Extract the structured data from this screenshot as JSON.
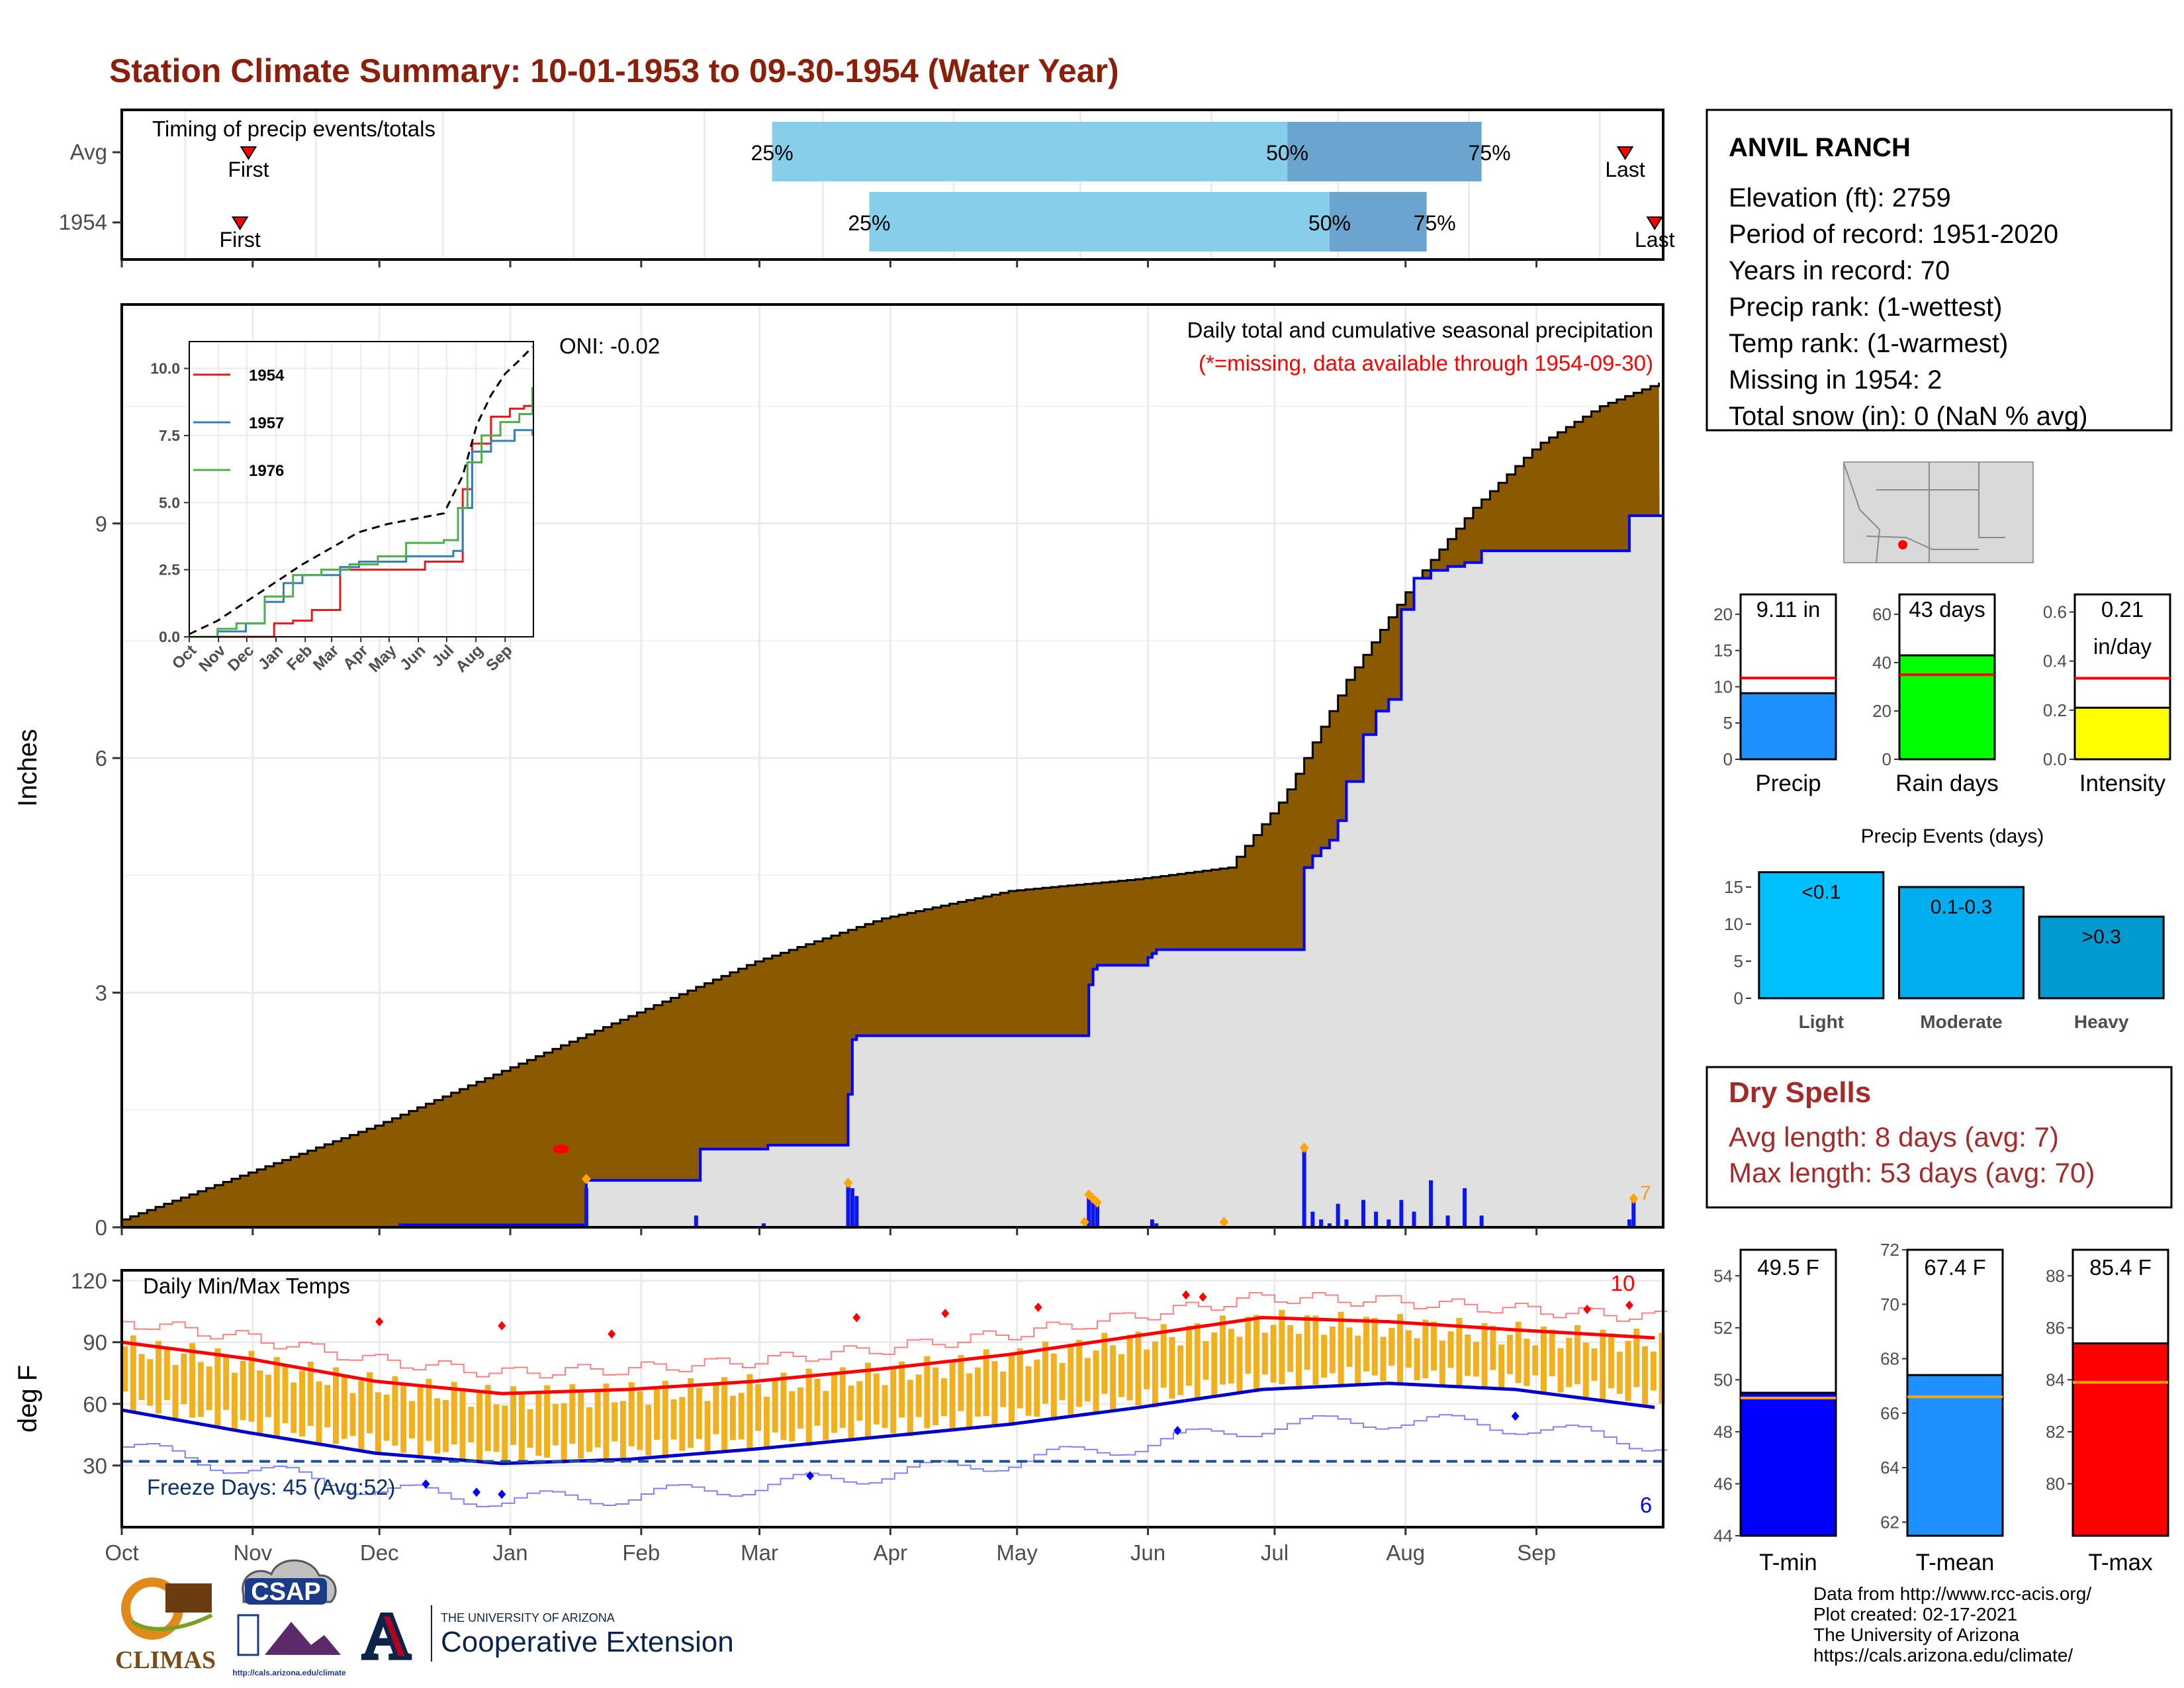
{
  "title": "Station Climate Summary: 10-01-1953 to 09-30-1954 (Water Year)",
  "colors": {
    "title": "#8b1f0a",
    "cum_fill": "#8b5a00",
    "avg_fill": "#e0e0e0",
    "bar_blue": "#0b14f5",
    "temp_bar": "#f0b020",
    "max_line": "#ff0000",
    "min_line": "#0000ff"
  },
  "timing": {
    "label": "Timing of precip events/totals",
    "rows": [
      {
        "label": "Avg",
        "first": "First",
        "last": "Last",
        "first_day": 30,
        "last_day": 356,
        "p25": 154,
        "p50": 276,
        "p75": 322,
        "p25_label": "25%",
        "p50_label": "50%",
        "p75_label": "75%"
      },
      {
        "label": "1954",
        "first": "First",
        "last": "Last",
        "first_day": 28,
        "last_day": 363,
        "p25": 177,
        "p50": 286,
        "p75": 309,
        "p25_label": "25%",
        "p50_label": "50%",
        "p75_label": "75%"
      }
    ]
  },
  "months": [
    "Oct",
    "Nov",
    "Dec",
    "Jan",
    "Feb",
    "Mar",
    "Apr",
    "May",
    "Jun",
    "Jul",
    "Aug",
    "Sep"
  ],
  "month_starts": [
    0,
    31,
    61,
    92,
    123,
    151,
    182,
    212,
    243,
    273,
    304,
    335
  ],
  "chart_data": [
    {
      "type": "area",
      "name": "cumulative-precip",
      "title": "Daily total and cumulative seasonal precipitation",
      "subtitle": "(*=missing, data available through 1954-09-30)",
      "ylabel": "Inches",
      "ylim": [
        0,
        11.8
      ],
      "yticks": [
        "0",
        "3",
        "6",
        "9"
      ],
      "oni": "ONI: -0.02",
      "avg_cum": {
        "x": [
          0,
          10,
          30,
          60,
          90,
          120,
          150,
          180,
          210,
          240,
          262,
          275,
          290,
          305,
          320,
          335,
          350,
          364
        ],
        "y": [
          0.1,
          0.3,
          0.7,
          1.3,
          2.0,
          2.7,
          3.4,
          3.95,
          4.3,
          4.45,
          4.6,
          5.5,
          7.0,
          8.2,
          9.2,
          10.0,
          10.5,
          10.8
        ]
      },
      "obs_cum": {
        "x": [
          0,
          65,
          66,
          109,
          110,
          136,
          137,
          152,
          153,
          171,
          172,
          173,
          174,
          228,
          229,
          230,
          231,
          242,
          243,
          244,
          245,
          279,
          280,
          282,
          284,
          286,
          288,
          290,
          294,
          297,
          300,
          303,
          306,
          310,
          314,
          318,
          322,
          340,
          355,
          357,
          364
        ],
        "y": [
          0,
          0,
          0.03,
          0.03,
          0.6,
          0.6,
          1.0,
          1.0,
          1.05,
          1.05,
          1.7,
          2.4,
          2.45,
          2.45,
          3.1,
          3.3,
          3.35,
          3.35,
          3.45,
          3.5,
          3.55,
          3.55,
          4.6,
          4.75,
          4.85,
          4.95,
          5.2,
          5.7,
          6.3,
          6.6,
          6.75,
          7.9,
          8.3,
          8.4,
          8.45,
          8.5,
          8.65,
          8.65,
          8.65,
          9.1,
          9.1
        ]
      },
      "daily": {
        "x": [
          66,
          110,
          136,
          152,
          172,
          173,
          174,
          229,
          230,
          231,
          244,
          245,
          280,
          282,
          284,
          286,
          288,
          290,
          294,
          297,
          300,
          303,
          306,
          310,
          314,
          318,
          322,
          357,
          358
        ],
        "y": [
          0.05,
          0.5,
          0.15,
          0.05,
          0.55,
          0.5,
          0.4,
          0.4,
          0.35,
          0.3,
          0.1,
          0.05,
          1.0,
          0.2,
          0.1,
          0.05,
          0.3,
          0.1,
          0.35,
          0.2,
          0.1,
          0.35,
          0.2,
          0.6,
          0.15,
          0.5,
          0.15,
          0.1,
          0.35
        ]
      },
      "rank_text": "7"
    },
    {
      "type": "line",
      "name": "inset-cumulative",
      "ylim": [
        0,
        11
      ],
      "yticks": [
        "0.0",
        "2.5",
        "5.0",
        "7.5",
        "10.0"
      ],
      "xticks": [
        "Oct",
        "Nov",
        "Dec",
        "Jan",
        "Feb",
        "Mar",
        "Apr",
        "May",
        "Jun",
        "Jul",
        "Aug",
        "Sep"
      ],
      "series": [
        {
          "name": "1954",
          "color": "#e41a1c",
          "x": [
            0,
            60,
            90,
            110,
            130,
            150,
            160,
            200,
            230,
            250,
            280,
            290,
            300,
            320,
            340,
            355,
            364
          ],
          "y": [
            0,
            0,
            0.5,
            0.6,
            1.0,
            1.0,
            2.5,
            2.5,
            2.5,
            2.8,
            2.8,
            5.5,
            7.2,
            8.2,
            8.5,
            8.6,
            9.3
          ]
        },
        {
          "name": "1957",
          "color": "#377eb8",
          "x": [
            0,
            30,
            60,
            80,
            100,
            120,
            140,
            160,
            180,
            200,
            230,
            280,
            290,
            300,
            320,
            345,
            364
          ],
          "y": [
            0,
            0.2,
            0.5,
            1.3,
            2.0,
            2.3,
            2.3,
            2.6,
            2.8,
            2.8,
            3.0,
            3.2,
            4.8,
            6.9,
            7.3,
            7.7,
            7.5
          ]
        },
        {
          "name": "1976",
          "color": "#4daf4a",
          "x": [
            0,
            30,
            50,
            80,
            110,
            140,
            170,
            200,
            230,
            270,
            285,
            295,
            310,
            330,
            350,
            364
          ],
          "y": [
            0,
            0.3,
            0.5,
            1.5,
            2.3,
            2.5,
            2.7,
            3.0,
            3.5,
            3.6,
            4.8,
            6.5,
            7.5,
            8.0,
            8.3,
            9.3
          ]
        },
        {
          "name": "Avg",
          "color": "#000000",
          "dash": true,
          "x": [
            0,
            30,
            60,
            90,
            120,
            150,
            180,
            210,
            240,
            270,
            290,
            305,
            320,
            335,
            350,
            364
          ],
          "y": [
            0.1,
            0.6,
            1.3,
            2.0,
            2.7,
            3.3,
            3.9,
            4.2,
            4.4,
            4.6,
            6.0,
            7.9,
            9.0,
            9.8,
            10.3,
            10.8
          ]
        }
      ]
    },
    {
      "type": "bar",
      "name": "daily-temps",
      "title": "Daily Min/Max Temps",
      "ylabel": "deg F",
      "ylim": [
        0,
        120
      ],
      "yticks": [
        "30",
        "60",
        "90",
        "120"
      ],
      "freeze_label": "Freeze Days: 45 (Avg:52)",
      "freeze_line": 32,
      "hot_count": "10",
      "cold_count": "6",
      "avg_max": {
        "x": [
          0,
          30,
          60,
          90,
          120,
          150,
          180,
          210,
          240,
          270,
          300,
          330,
          364
        ],
        "y": [
          90,
          82,
          71,
          65,
          67,
          71,
          77,
          84,
          93,
          102,
          100,
          96,
          92
        ]
      },
      "avg_min": {
        "x": [
          0,
          30,
          60,
          90,
          120,
          150,
          180,
          210,
          240,
          270,
          300,
          330,
          364
        ],
        "y": [
          57,
          46,
          36,
          31,
          33,
          38,
          44,
          50,
          58,
          67,
          70,
          67,
          58
        ]
      }
    },
    {
      "type": "bar",
      "name": "precip-total",
      "title": "Precip",
      "label": "9.11 in",
      "value": 9.11,
      "avg": 11.2,
      "ylim": [
        0,
        22
      ],
      "yticks": [
        "0",
        "5",
        "10",
        "15",
        "20"
      ],
      "color": "#1e90ff"
    },
    {
      "type": "bar",
      "name": "rain-days",
      "title": "Rain days",
      "label": "43 days",
      "value": 43,
      "avg": 35,
      "ylim": [
        0,
        66
      ],
      "yticks": [
        "0",
        "20",
        "40",
        "60"
      ],
      "color": "#00ff00"
    },
    {
      "type": "bar",
      "name": "intensity",
      "title": "Intensity",
      "label": "0.21",
      "label2": "in/day",
      "value": 0.21,
      "avg": 0.33,
      "ylim": [
        0,
        0.65
      ],
      "yticks": [
        "0.0",
        "0.2",
        "0.4",
        "0.6"
      ],
      "color": "#ffff00"
    },
    {
      "type": "bar",
      "name": "precip-events",
      "title": "Precip Events (days)",
      "categories": [
        "Light",
        "Moderate",
        "Heavy"
      ],
      "values": [
        17,
        15,
        11
      ],
      "labels": [
        "<0.1",
        "0.1-0.3",
        ">0.3"
      ],
      "colors": [
        "#00bfff",
        "#00aeef",
        "#009ad0"
      ],
      "ylim": [
        0,
        17.5
      ],
      "yticks": [
        "0",
        "5",
        "10",
        "15"
      ]
    },
    {
      "type": "bar",
      "name": "t-min",
      "title": "T-min",
      "label": "49.5 F",
      "value": 49.5,
      "avg": 49.3,
      "ylim": [
        44,
        55
      ],
      "yticks": [
        "44",
        "46",
        "48",
        "50",
        "52",
        "54"
      ],
      "color": "#0000ff"
    },
    {
      "type": "bar",
      "name": "t-mean",
      "title": "T-mean",
      "label": "67.4 F",
      "value": 67.4,
      "avg": 66.6,
      "ylim": [
        61.5,
        72
      ],
      "yticks": [
        "62",
        "64",
        "66",
        "68",
        "70",
        "72"
      ],
      "color": "#1e90ff"
    },
    {
      "type": "bar",
      "name": "t-max",
      "title": "T-max",
      "label": "85.4 F",
      "value": 85.4,
      "avg": 83.9,
      "ylim": [
        78,
        89
      ],
      "yticks": [
        "80",
        "82",
        "84",
        "86",
        "88"
      ],
      "color": "#ff0000"
    }
  ],
  "station": {
    "name": "ANVIL RANCH",
    "lines": [
      "Elevation (ft): 2759",
      "Period of record: 1951-2020",
      "Years in record: 70",
      "Precip rank:  (1-wettest)",
      "Temp rank:  (1-warmest)",
      "Missing in 1954: 2",
      "Total snow (in): 0 (NaN % avg)"
    ]
  },
  "dry_spells": {
    "title": "Dry Spells",
    "avg_length": "Avg length: 8 days (avg: 7)",
    "max_length": "Max length: 53 days (avg: 70)"
  },
  "footer": {
    "lines": [
      "Data from http://www.rcc-acis.org/",
      "Plot created: 02-17-2021",
      "The University of Arizona",
      "https://cals.arizona.edu/climate/"
    ],
    "climas": "CLIMAS",
    "csap": "CSAP",
    "csap_url": "http://cals.arizona.edu/climate",
    "ua_small": "THE UNIVERSITY OF ARIZONA",
    "ua_big": "Cooperative Extension"
  }
}
